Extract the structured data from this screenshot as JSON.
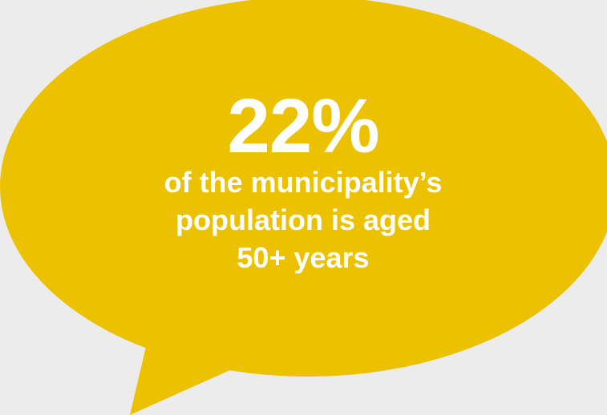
{
  "colors": {
    "background": "#ececec",
    "bubble": "#ecc200",
    "text": "#ffffff"
  },
  "infographic": {
    "stat": "22%",
    "caption_lines": [
      "of the municipality’s",
      "population is aged",
      "50+ years"
    ]
  }
}
